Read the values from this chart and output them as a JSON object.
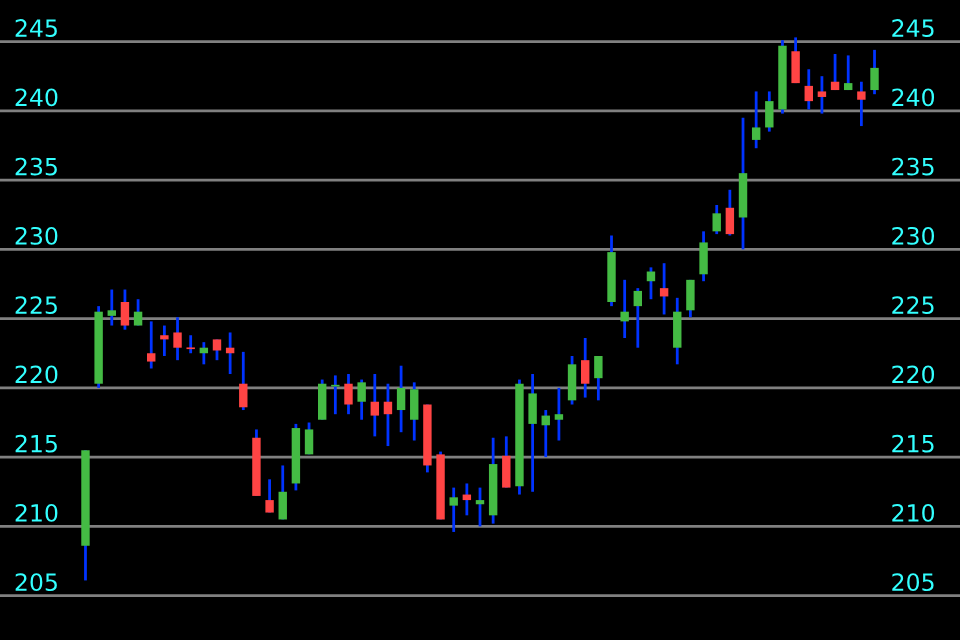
{
  "chart_data": {
    "type": "candlestick",
    "categories": [
      null,
      null,
      null,
      null,
      null,
      null,
      null,
      null,
      null,
      null,
      null,
      null,
      null,
      null,
      null,
      null,
      null,
      null,
      null,
      null,
      null,
      null,
      null,
      null,
      null,
      null,
      null,
      null,
      null,
      null,
      null,
      null,
      null,
      null,
      null,
      null,
      null,
      null,
      null,
      null,
      null,
      null,
      null,
      null,
      null,
      null,
      null,
      null,
      null,
      null,
      null,
      null,
      null,
      null,
      null,
      null,
      null,
      null,
      null,
      null,
      null
    ],
    "ohlc": [
      [
        208.6,
        215.5,
        206.1,
        215.5
      ],
      [
        220.3,
        225.9,
        220.0,
        225.5
      ],
      [
        225.2,
        227.1,
        224.5,
        225.6
      ],
      [
        226.2,
        227.1,
        224.2,
        224.5
      ],
      [
        224.5,
        226.4,
        224.5,
        225.5
      ],
      [
        222.5,
        224.8,
        221.4,
        221.9
      ],
      [
        223.8,
        224.5,
        222.3,
        223.5
      ],
      [
        224.0,
        225.1,
        222.0,
        222.9
      ],
      [
        222.9,
        223.8,
        222.5,
        222.8
      ],
      [
        222.5,
        223.3,
        221.7,
        222.9
      ],
      [
        223.5,
        223.5,
        222.0,
        222.7
      ],
      [
        222.9,
        224.0,
        221.0,
        222.5
      ],
      [
        220.3,
        222.6,
        218.4,
        218.6
      ],
      [
        216.4,
        217.0,
        212.2,
        212.2
      ],
      [
        211.9,
        213.4,
        211.0,
        211.0
      ],
      [
        210.5,
        214.4,
        210.5,
        212.5
      ],
      [
        213.1,
        217.4,
        212.6,
        217.1
      ],
      [
        215.2,
        217.5,
        215.2,
        217.0
      ],
      [
        217.7,
        220.6,
        217.7,
        220.3
      ],
      [
        220.1,
        220.9,
        218.1,
        220.2
      ],
      [
        220.3,
        221.0,
        218.1,
        218.8
      ],
      [
        219.0,
        220.6,
        217.7,
        220.4
      ],
      [
        219.0,
        221.0,
        216.5,
        218.0
      ],
      [
        219.0,
        220.3,
        215.8,
        218.1
      ],
      [
        218.4,
        221.6,
        216.8,
        220.0
      ],
      [
        217.7,
        220.4,
        216.2,
        219.9
      ],
      [
        218.8,
        218.8,
        213.9,
        214.4
      ],
      [
        215.2,
        215.4,
        210.5,
        210.5
      ],
      [
        211.5,
        212.8,
        209.6,
        212.1
      ],
      [
        212.3,
        213.1,
        210.8,
        211.9
      ],
      [
        211.6,
        212.8,
        210.0,
        211.9
      ],
      [
        210.8,
        216.4,
        210.2,
        214.5
      ],
      [
        215.1,
        216.5,
        212.8,
        212.8
      ],
      [
        212.9,
        220.6,
        212.3,
        220.3
      ],
      [
        217.4,
        221.0,
        212.5,
        219.6
      ],
      [
        217.3,
        218.4,
        215.0,
        218.0
      ],
      [
        217.7,
        220.0,
        216.2,
        218.1
      ],
      [
        219.1,
        222.3,
        218.8,
        221.7
      ],
      [
        222.0,
        223.6,
        219.3,
        220.3
      ],
      [
        220.7,
        222.3,
        219.1,
        222.3
      ],
      [
        226.2,
        231.0,
        225.9,
        229.8
      ],
      [
        224.8,
        227.8,
        223.6,
        225.5
      ],
      [
        225.9,
        227.2,
        222.9,
        227.0
      ],
      [
        227.7,
        228.7,
        226.4,
        228.4
      ],
      [
        227.2,
        229.0,
        225.3,
        226.6
      ],
      [
        222.9,
        226.5,
        221.7,
        225.5
      ],
      [
        225.6,
        227.8,
        225.1,
        227.8
      ],
      [
        228.2,
        231.3,
        227.7,
        230.5
      ],
      [
        231.3,
        233.2,
        231.1,
        232.6
      ],
      [
        233.0,
        234.3,
        231.0,
        231.1
      ],
      [
        232.3,
        239.5,
        230.0,
        235.5
      ],
      [
        237.9,
        241.4,
        237.3,
        238.8
      ],
      [
        238.8,
        241.4,
        238.5,
        240.7
      ],
      [
        240.1,
        245.1,
        239.8,
        244.7
      ],
      [
        244.3,
        245.3,
        242.0,
        242.0
      ],
      [
        241.8,
        243.0,
        240.1,
        240.7
      ],
      [
        241.4,
        242.5,
        239.8,
        241.0
      ],
      [
        242.1,
        244.1,
        241.5,
        241.5
      ],
      [
        241.5,
        244.0,
        241.5,
        242.0
      ],
      [
        241.4,
        242.1,
        238.9,
        240.8
      ],
      [
        241.5,
        244.4,
        241.2,
        243.1
      ]
    ],
    "colors": [
      "#44bb44",
      "#44bb44",
      "#44bb44",
      "#ff4444",
      "#44bb44",
      "#ff4444",
      "#ff4444",
      "#ff4444",
      "#ff4444",
      "#44bb44",
      "#ff4444",
      "#ff4444",
      "#ff4444",
      "#ff4444",
      "#ff4444",
      "#44bb44",
      "#44bb44",
      "#44bb44",
      "#44bb44",
      "#44bb44",
      "#ff4444",
      "#44bb44",
      "#ff4444",
      "#ff4444",
      "#44bb44",
      "#44bb44",
      "#ff4444",
      "#ff4444",
      "#44bb44",
      "#ff4444",
      "#44bb44",
      "#44bb44",
      "#ff4444",
      "#44bb44",
      "#44bb44",
      "#44bb44",
      "#44bb44",
      "#44bb44",
      "#ff4444",
      "#44bb44",
      "#44bb44",
      "#44bb44",
      "#44bb44",
      "#44bb44",
      "#ff4444",
      "#44bb44",
      "#44bb44",
      "#44bb44",
      "#44bb44",
      "#ff4444",
      "#44bb44",
      "#44bb44",
      "#44bb44",
      "#44bb44",
      "#ff4444",
      "#ff4444",
      "#ff4444",
      "#ff4444",
      "#44bb44",
      "#ff4444",
      "#44bb44"
    ],
    "ylim": [
      201.8,
      248.0
    ],
    "yticks": [
      205,
      210,
      215,
      220,
      225,
      230,
      235,
      240,
      245
    ],
    "y2lim": [
      201.8,
      248.0
    ],
    "y2ticks": [
      205,
      210,
      215,
      220,
      225,
      230,
      235,
      240,
      245
    ],
    "grid": "y",
    "tick_labels": "y"
  }
}
